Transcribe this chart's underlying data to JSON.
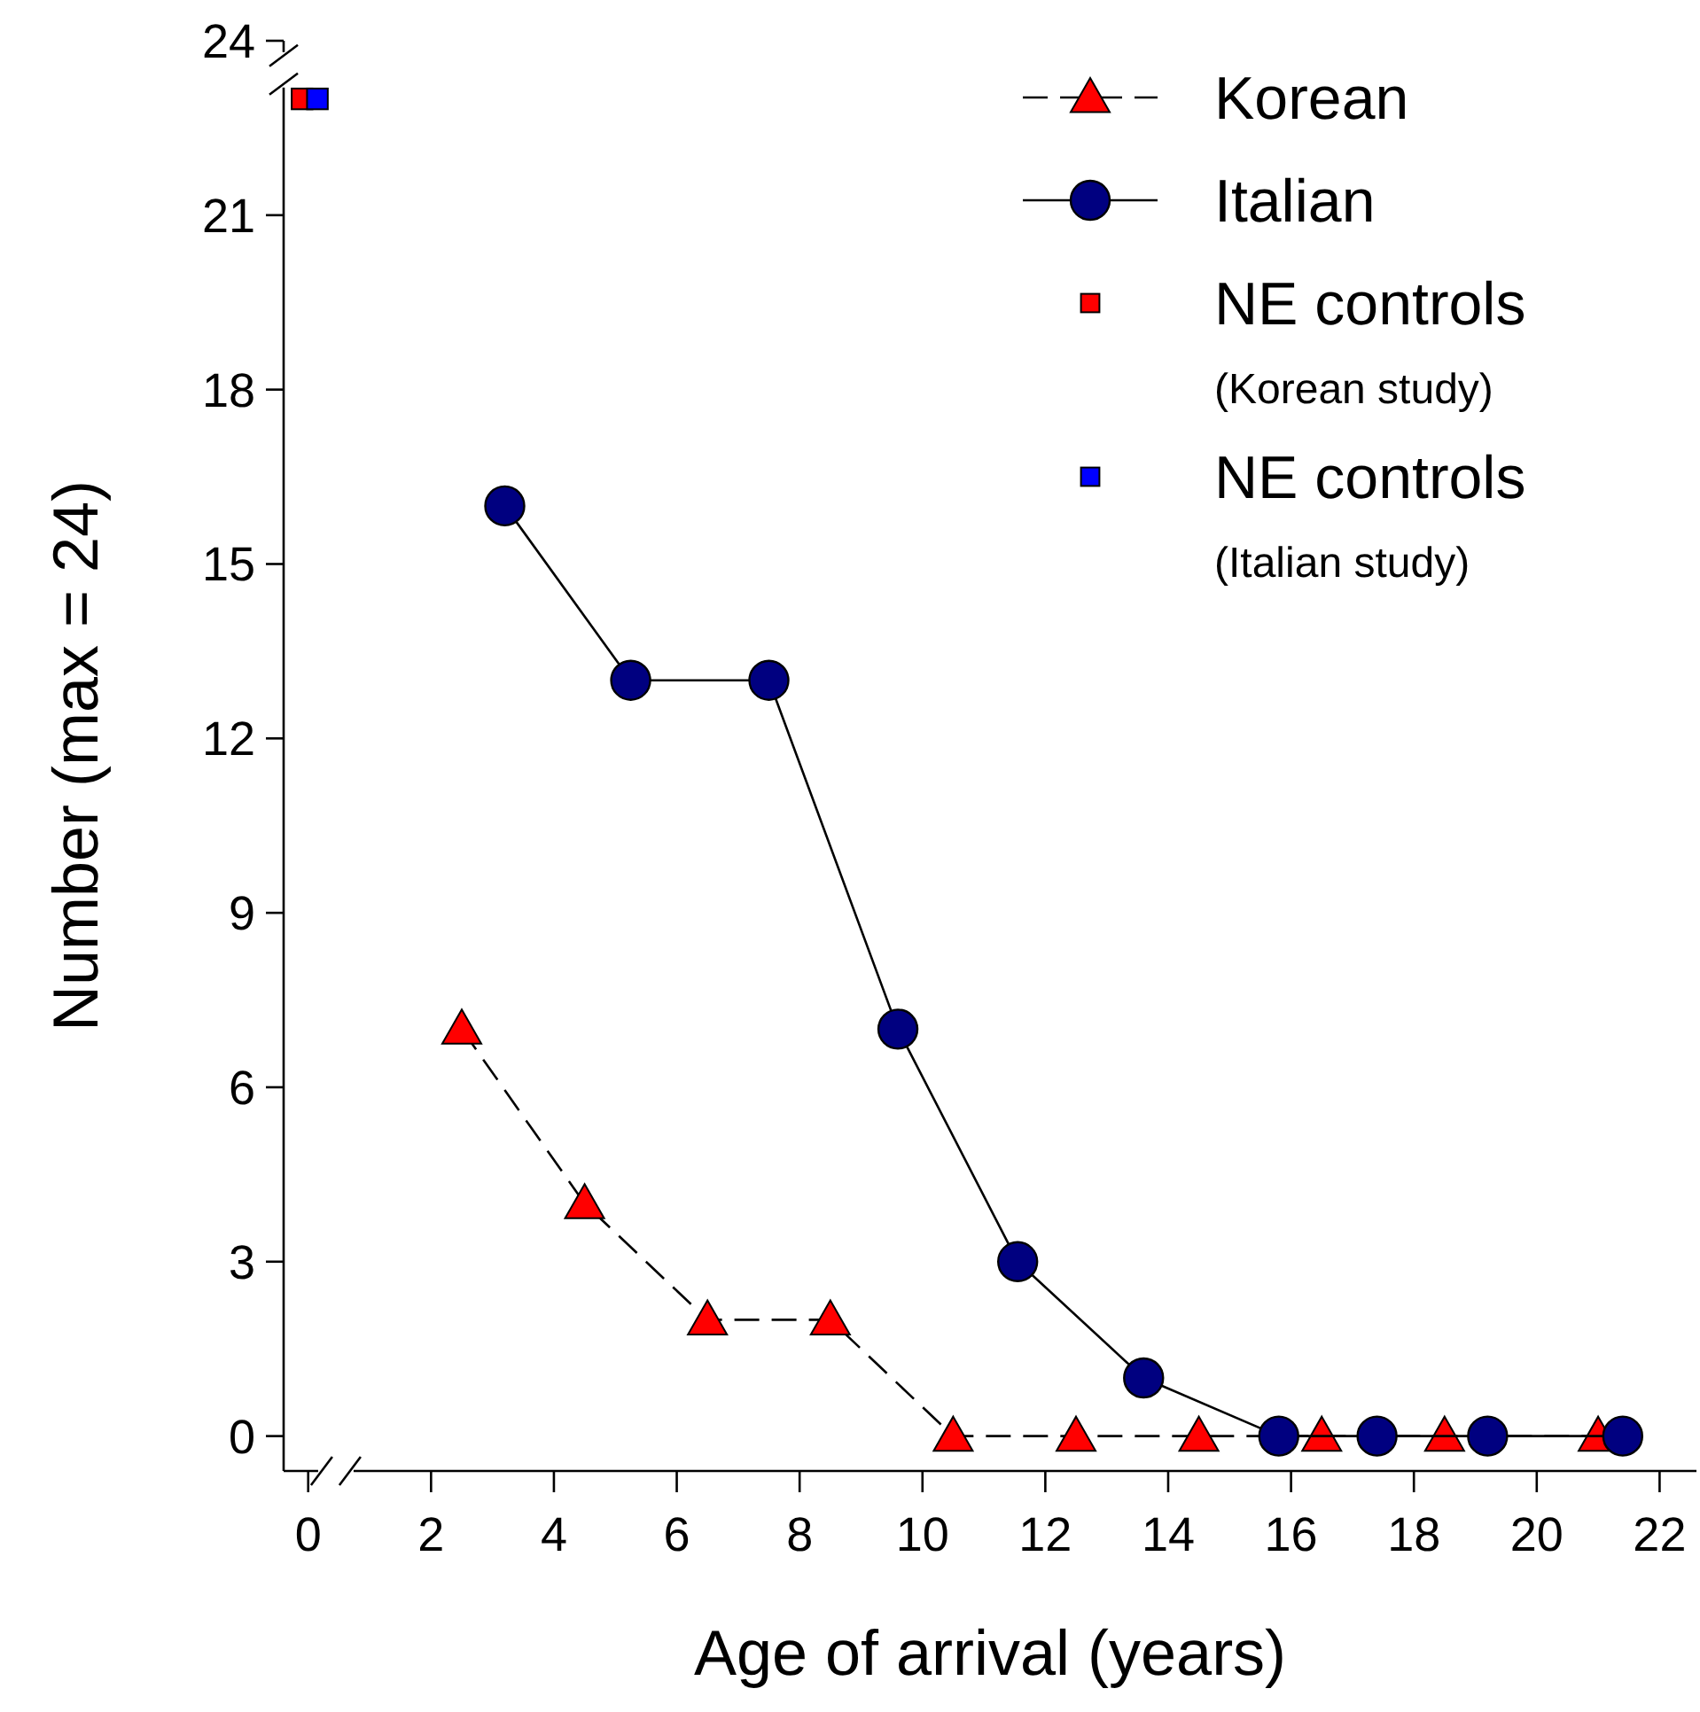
{
  "chart_data": {
    "type": "line",
    "xlabel": "Age of arrival (years)",
    "ylabel": "Number (max = 24)",
    "xlim": [
      -0.4,
      22.6
    ],
    "ylim": [
      -0.6,
      24
    ],
    "xticks": [
      0,
      2,
      4,
      6,
      8,
      10,
      12,
      14,
      16,
      18,
      20,
      22
    ],
    "yticks": [
      0,
      3,
      6,
      9,
      12,
      15,
      18,
      21,
      24
    ],
    "legend": "top right",
    "grid": false,
    "series": [
      {
        "name": "Korean",
        "marker": "triangle",
        "line_style": "dashed",
        "color": "#ff0000",
        "x": [
          2.5,
          4.5,
          6.5,
          8.5,
          10.5,
          12.5,
          14.5,
          16.5,
          18.5,
          21
        ],
        "values": [
          7,
          4,
          2,
          2,
          0,
          0,
          0,
          0,
          0,
          0
        ]
      },
      {
        "name": "Italian",
        "marker": "circle",
        "line_style": "solid",
        "color": "#000080",
        "x": [
          3.2,
          5.25,
          7.5,
          9.6,
          11.55,
          13.6,
          15.8,
          17.4,
          19.2,
          21.4
        ],
        "values": [
          16,
          13,
          13,
          7,
          3,
          1,
          0,
          0,
          0,
          0
        ]
      },
      {
        "name": "NE controls (Korean study)",
        "type": "scatter",
        "marker": "square",
        "color": "#ff0000",
        "x": [
          -0.1
        ],
        "values": [
          23
        ]
      },
      {
        "name": "NE controls (Italian study)",
        "type": "scatter",
        "marker": "square",
        "color": "#0000ff",
        "x": [
          0.15
        ],
        "values": [
          23
        ]
      }
    ]
  }
}
